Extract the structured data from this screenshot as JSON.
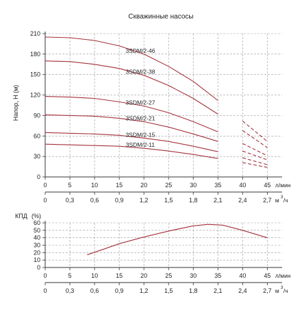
{
  "chart_data": [
    {
      "type": "line",
      "title": "Скважинные насосы",
      "ylabel": "Напор, Н (м)",
      "xlabel_primary": "л/мин",
      "xlabel_secondary_base": "м",
      "xlabel_secondary_sup": "3",
      "xlabel_secondary_tail": "/ч",
      "xlim": [
        0,
        48
      ],
      "ylim": [
        0,
        210
      ],
      "yticks": [
        0,
        30,
        60,
        90,
        120,
        150,
        180,
        210
      ],
      "xticks_primary": [
        0,
        5,
        10,
        15,
        20,
        25,
        30,
        35,
        40,
        45
      ],
      "xticks_secondary": [
        "0",
        "0,3",
        "0,6",
        "0,9",
        "1,2",
        "1,5",
        "1,8",
        "2,1",
        "2,4",
        "2,7"
      ],
      "grid": true,
      "series": [
        {
          "name": "3SDM/2-46",
          "x": [
            0,
            5,
            10,
            15,
            20,
            25,
            30,
            35,
            40,
            45
          ],
          "y": [
            205,
            204,
            200,
            192,
            180,
            162,
            140,
            112,
            82,
            52
          ],
          "dashed_from_x": 36
        },
        {
          "name": "3SDM/2-38",
          "x": [
            0,
            5,
            10,
            15,
            20,
            25,
            30,
            35,
            40,
            45
          ],
          "y": [
            170,
            169,
            165,
            159,
            149,
            134,
            115,
            92,
            68,
            43
          ],
          "dashed_from_x": 36
        },
        {
          "name": "3SDM/2-27",
          "x": [
            0,
            5,
            10,
            15,
            20,
            25,
            30,
            35,
            40,
            45
          ],
          "y": [
            118,
            117,
            115,
            110,
            104,
            94,
            81,
            66,
            49,
            31
          ],
          "dashed_from_x": 36
        },
        {
          "name": "3SDM/2-21",
          "x": [
            0,
            5,
            10,
            15,
            20,
            25,
            30,
            35,
            40,
            45
          ],
          "y": [
            91,
            90,
            89,
            86,
            81,
            73,
            63,
            52,
            38,
            25
          ],
          "dashed_from_x": 36
        },
        {
          "name": "3SDM/2-15",
          "x": [
            0,
            5,
            10,
            15,
            20,
            25,
            30,
            35,
            40,
            45
          ],
          "y": [
            65,
            64,
            63,
            61,
            57,
            52,
            45,
            37,
            28,
            18
          ],
          "dashed_from_x": 36
        },
        {
          "name": "3SDM/2-11",
          "x": [
            0,
            5,
            10,
            15,
            20,
            25,
            30,
            35,
            40,
            45
          ],
          "y": [
            48,
            47,
            46,
            45,
            42,
            38,
            33,
            27,
            21,
            14
          ],
          "dashed_from_x": 36
        }
      ],
      "colors": {
        "curve": "#a3303a",
        "axis": "#333333",
        "grid": "#9a9a9a"
      }
    },
    {
      "type": "line",
      "ylabel": "КПД",
      "yunit": "(%)",
      "xlabel_primary": "л/мин",
      "xlabel_secondary_base": "м",
      "xlabel_secondary_sup": "3",
      "xlabel_secondary_tail": "/ч",
      "xlim": [
        0,
        48
      ],
      "ylim": [
        0,
        60
      ],
      "yticks": [
        0,
        10,
        20,
        30,
        40,
        50,
        60
      ],
      "xticks_primary": [
        0,
        5,
        10,
        15,
        20,
        25,
        30,
        35,
        40,
        45
      ],
      "xticks_secondary": [
        "0",
        "0,3",
        "0,6",
        "0,9",
        "1,2",
        "1,5",
        "1,8",
        "2,1",
        "2,4",
        "2,7"
      ],
      "grid": true,
      "series": [
        {
          "name": "",
          "x": [
            8.5,
            12,
            15,
            20,
            25,
            30,
            33,
            36,
            40,
            45
          ],
          "y": [
            17,
            25,
            32,
            41,
            49,
            56,
            58,
            57,
            50,
            40
          ]
        }
      ],
      "colors": {
        "curve": "#a3303a",
        "axis": "#333333",
        "grid": "#9a9a9a"
      }
    }
  ]
}
